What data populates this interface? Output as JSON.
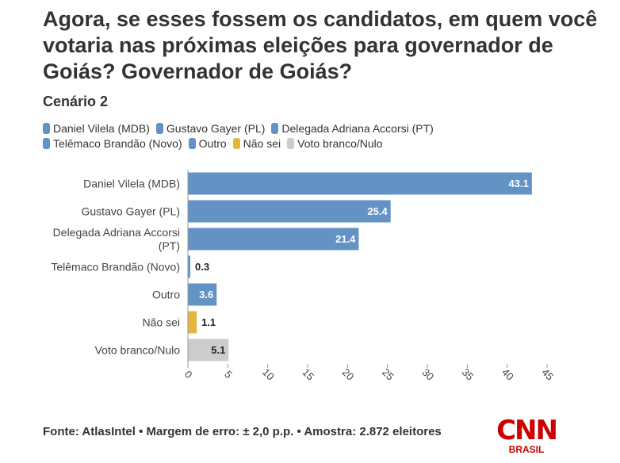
{
  "title": "Agora, se esses fossem os candidatos, em quem você votaria nas próximas eleições para governador de Goiás? Governador de Goiás?",
  "subtitle": "Cenário 2",
  "chart_data": {
    "type": "bar",
    "orientation": "horizontal",
    "categories": [
      "Daniel Vilela (MDB)",
      "Gustavo Gayer (PL)",
      "Delegada Adriana Accorsi (PT)",
      "Telêmaco Brandão (Novo)",
      "Outro",
      "Não sei",
      "Voto branco/Nulo"
    ],
    "values": [
      43.1,
      25.4,
      21.4,
      0.3,
      3.6,
      1.1,
      5.1
    ],
    "colors": [
      "#6393c4",
      "#6393c4",
      "#6393c4",
      "#6393c4",
      "#6393c4",
      "#e5b53f",
      "#cccccc"
    ],
    "xlim": [
      0,
      45
    ],
    "xticks": [
      0,
      5,
      10,
      15,
      20,
      25,
      30,
      35,
      40,
      45
    ]
  },
  "footer": "Fonte: AtlasIntel • Margem de erro: ± 2,0 p.p. • Amostra: 2.872 eleitores",
  "logo": {
    "brand": "CNN",
    "region": "BRASIL"
  }
}
